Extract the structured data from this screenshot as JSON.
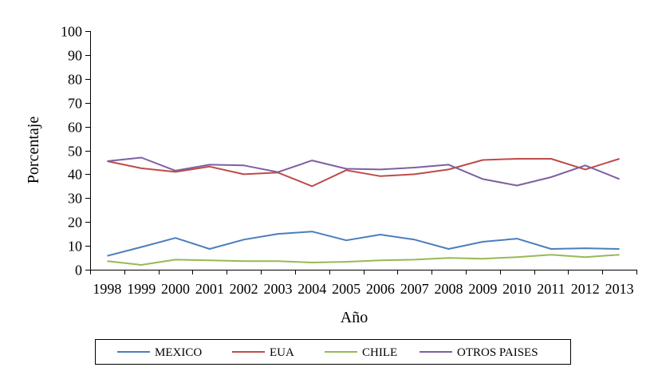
{
  "chart_data": {
    "type": "line",
    "xlabel": "Año",
    "ylabel": "Porcentaje",
    "ylim": [
      0,
      100
    ],
    "yticks": [
      0,
      10,
      20,
      30,
      40,
      50,
      60,
      70,
      80,
      90,
      100
    ],
    "categories": [
      "1998",
      "1999",
      "2000",
      "2001",
      "2002",
      "2003",
      "2004",
      "2005",
      "2006",
      "2007",
      "2008",
      "2009",
      "2010",
      "2011",
      "2012",
      "2013"
    ],
    "legend_position": "bottom",
    "grid": false,
    "series": [
      {
        "name": "MEXICO",
        "color": "#4a7ebb",
        "values": [
          5.8,
          9.5,
          13.3,
          8.7,
          12.6,
          15.0,
          16.0,
          12.3,
          14.7,
          12.6,
          8.7,
          11.7,
          13.0,
          8.7,
          9.0,
          8.7
        ]
      },
      {
        "name": "EUA",
        "color": "#be4b48",
        "values": [
          45.5,
          42.5,
          41.0,
          43.2,
          40.0,
          40.7,
          35.0,
          41.7,
          39.2,
          40.0,
          42.0,
          46.0,
          46.5,
          46.5,
          42.0,
          46.5
        ]
      },
      {
        "name": "CHILE",
        "color": "#98b954",
        "values": [
          3.6,
          2.0,
          4.2,
          3.9,
          3.6,
          3.6,
          3.0,
          3.3,
          3.9,
          4.2,
          4.9,
          4.6,
          5.3,
          6.3,
          5.3,
          6.3
        ]
      },
      {
        "name": "OTROS PAISES",
        "color": "#7d60a0",
        "values": [
          45.5,
          47.0,
          41.5,
          44.0,
          43.7,
          40.9,
          45.8,
          42.3,
          42.0,
          42.8,
          44.0,
          38.0,
          35.3,
          38.8,
          43.7,
          38.0
        ]
      }
    ]
  }
}
